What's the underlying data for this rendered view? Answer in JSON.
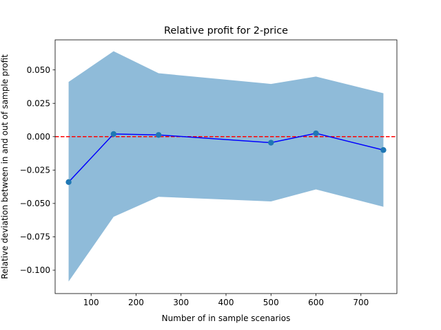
{
  "chart_data": {
    "type": "line",
    "title": "Relative profit for 2-price",
    "xlabel": "Number of in sample scenarios",
    "ylabel": "Relative deviation between in and out of sample profit",
    "xlim": [
      20,
      780
    ],
    "ylim": [
      -0.1175,
      0.0725
    ],
    "xticks": [
      100,
      200,
      300,
      400,
      500,
      600,
      700
    ],
    "yticks": [
      -0.1,
      -0.075,
      -0.05,
      -0.025,
      0.0,
      0.025,
      0.05
    ],
    "ytick_labels": [
      "−0.100",
      "−0.075",
      "−0.050",
      "−0.025",
      "0.000",
      "0.025",
      "0.050"
    ],
    "x": [
      50,
      150,
      250,
      500,
      600,
      750
    ],
    "series": [
      {
        "values": [
          -0.034,
          0.002,
          0.0013,
          -0.0045,
          0.0025,
          -0.01
        ]
      }
    ],
    "band": {
      "upper": [
        0.041,
        0.064,
        0.0475,
        0.0395,
        0.045,
        0.0325
      ],
      "lower": [
        -0.1085,
        -0.06,
        -0.045,
        -0.0485,
        -0.0395,
        -0.0525
      ]
    },
    "reference_line": {
      "y": 0.0,
      "style": "dashed"
    },
    "colors": {
      "line": "#0000ff",
      "markers": "#1f77b4",
      "band": "#1f77b4",
      "reference": "#ff0000"
    },
    "grid": false
  }
}
